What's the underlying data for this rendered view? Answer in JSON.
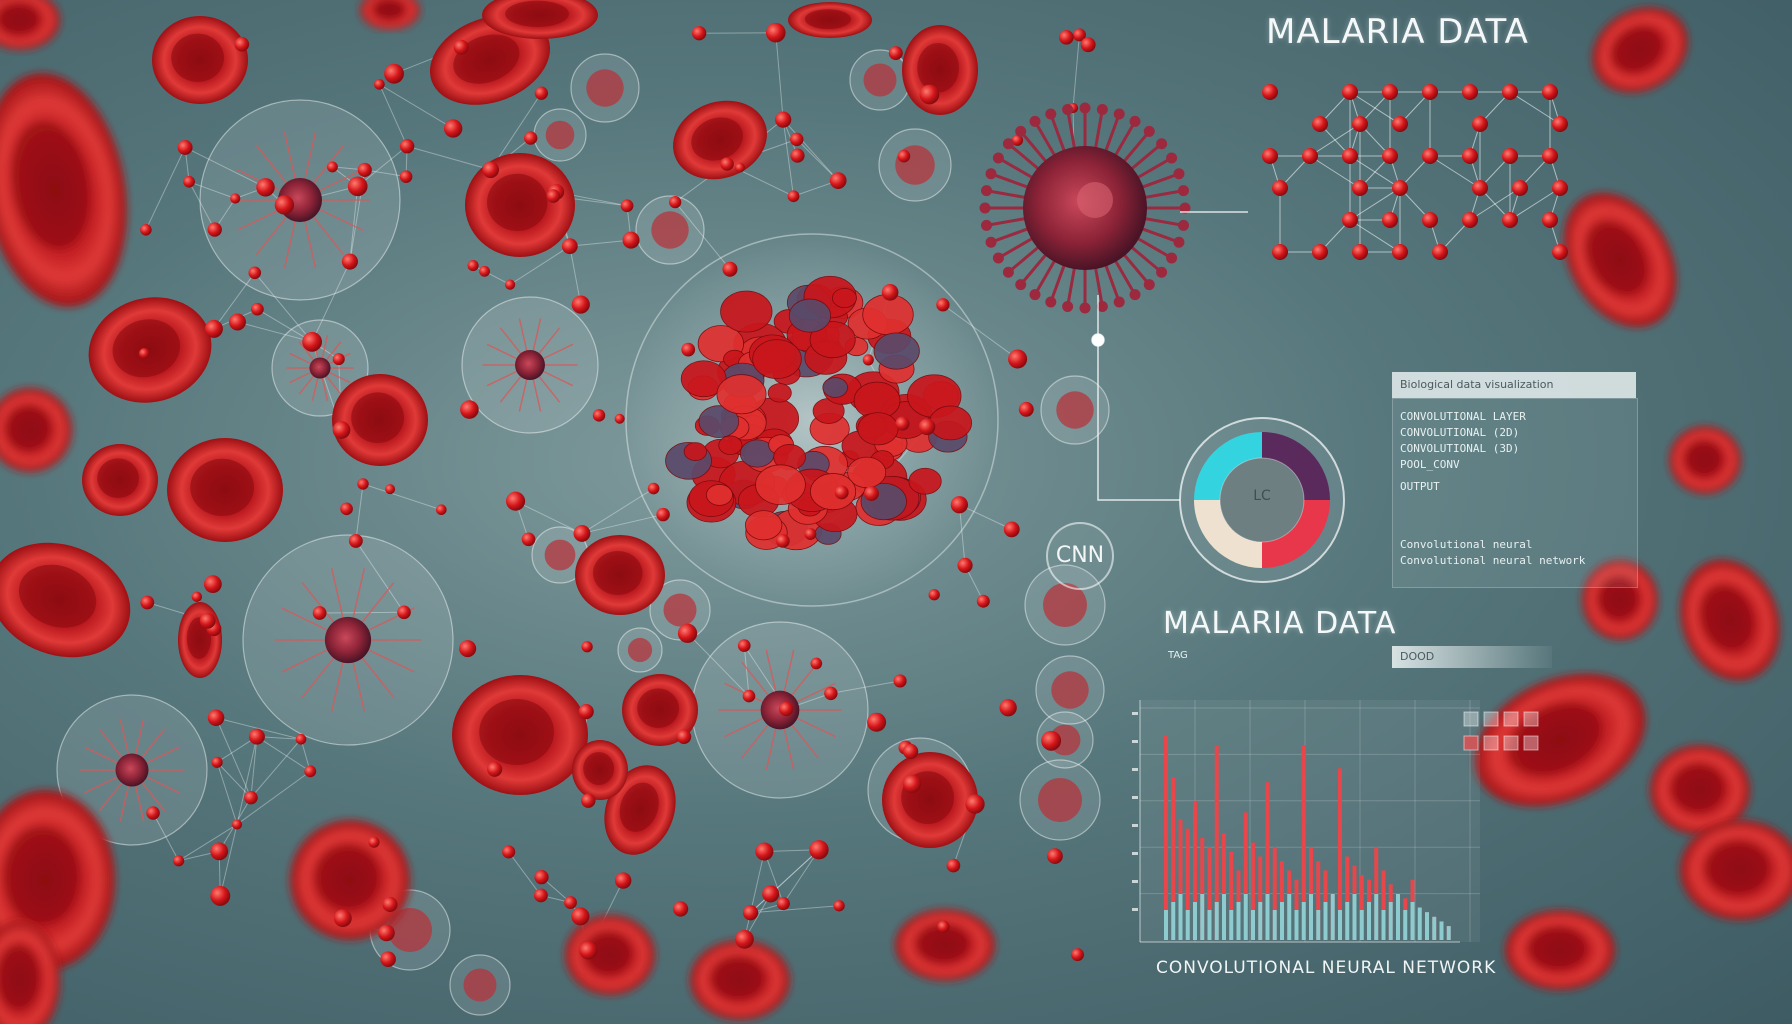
{
  "image": {
    "kind": "illustration",
    "subject": "red blood cells and parasites with neural network overlay"
  },
  "labels": {
    "title_top": "MALARIA DATA",
    "title_mid": "MALARIA DATA",
    "cnn": "CNN",
    "caption": "CONVOLUTIONAL NEURAL NETWORK"
  },
  "panel": {
    "header": "Biological data visualization",
    "lines": [
      "CONVOLUTIONAL LAYER",
      "CONVOLUTIONAL (2D)",
      "CONVOLUTIONAL (3D)",
      "POOL_CONV",
      "OUTPUT"
    ],
    "footer1": "Convolutional neural",
    "footer2": "Convolutional neural network"
  },
  "small_tag": "TAG",
  "pill_text": "DOOD",
  "donut": {
    "center_label": "LC",
    "segments": [
      {
        "color": "#5a2a5c",
        "value": 0.25
      },
      {
        "color": "#e8364b",
        "value": 0.25
      },
      {
        "color": "#efe1cf",
        "value": 0.25
      },
      {
        "color": "#34d3e0",
        "value": 0.25
      }
    ]
  },
  "colors": {
    "cell_red": "#c8161c",
    "cell_dark": "#8a0b10",
    "node_red": "#d6161a",
    "line_white": "#ffffff",
    "bar_red": "#e8464b",
    "bar_cyan": "#7ee3e6"
  },
  "chart_data": {
    "type": "bar",
    "values": [
      88,
      70,
      52,
      48,
      60,
      44,
      40,
      84,
      46,
      38,
      30,
      55,
      42,
      36,
      68,
      40,
      34,
      30,
      26,
      84,
      40,
      34,
      30,
      20,
      74,
      36,
      32,
      28,
      26,
      40,
      30,
      24,
      20,
      18,
      26,
      14,
      12,
      10,
      8,
      6
    ],
    "ylim": [
      0,
      100
    ]
  }
}
